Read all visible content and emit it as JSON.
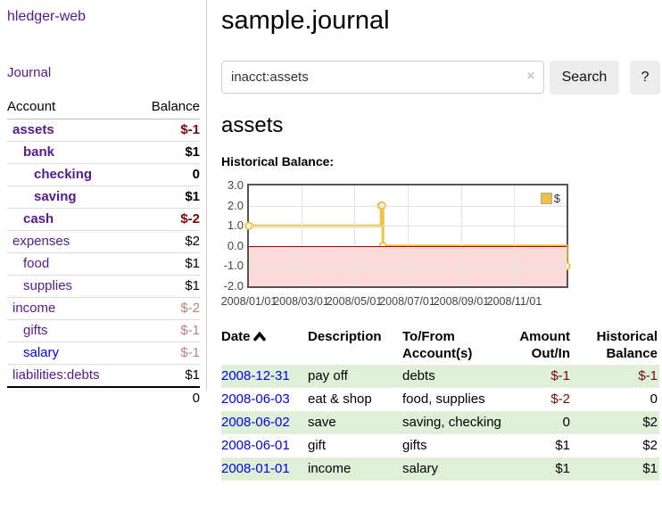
{
  "app": {
    "brand": "hledger-web",
    "nav": {
      "journal": "Journal"
    }
  },
  "sidebar": {
    "table_headers": {
      "account": "Account",
      "balance": "Balance"
    },
    "accounts": [
      {
        "name": "assets",
        "balance": "$-1"
      },
      {
        "name": "bank",
        "balance": "$1"
      },
      {
        "name": "checking",
        "balance": "0"
      },
      {
        "name": "saving",
        "balance": "$1"
      },
      {
        "name": "cash",
        "balance": "$-2"
      },
      {
        "name": "expenses",
        "balance": "$2"
      },
      {
        "name": "food",
        "balance": "$1"
      },
      {
        "name": "supplies",
        "balance": "$1"
      },
      {
        "name": "income",
        "balance": "$-2"
      },
      {
        "name": "gifts",
        "balance": "$-1"
      },
      {
        "name": "salary",
        "balance": "$-1"
      },
      {
        "name": "liabilities:debts",
        "balance": "$1"
      }
    ],
    "total": "0"
  },
  "main": {
    "title": "sample.journal",
    "search": {
      "value": "inacct:assets",
      "clear_icon": "×",
      "search_button": "Search",
      "help_button": "?"
    },
    "account_heading": "assets",
    "section_label": "Historical Balance:"
  },
  "chart_data": {
    "type": "line",
    "step": true,
    "title": "Historical Balance:",
    "legend": {
      "label": "$",
      "position": "top-right"
    },
    "series": [
      {
        "name": "$",
        "color": "#edc240",
        "points": [
          {
            "date": "2008-01-01",
            "day": 0,
            "value": 1
          },
          {
            "date": "2008-06-01",
            "day": 152,
            "value": 2
          },
          {
            "date": "2008-06-02",
            "day": 153,
            "value": 2
          },
          {
            "date": "2008-06-03",
            "day": 154,
            "value": 0
          },
          {
            "date": "2008-12-31",
            "day": 365,
            "value": -1
          }
        ]
      }
    ],
    "x_span_days": 365,
    "x_ticks": [
      {
        "label": "2008/01/01",
        "day": 0
      },
      {
        "label": "2008/03/01",
        "day": 60
      },
      {
        "label": "2008/05/01",
        "day": 121
      },
      {
        "label": "2008/07/01",
        "day": 182
      },
      {
        "label": "2008/09/01",
        "day": 244
      },
      {
        "label": "2008/11/01",
        "day": 305
      }
    ],
    "y_ticks": [
      {
        "label": "3.0",
        "value": 3
      },
      {
        "label": "2.0",
        "value": 2
      },
      {
        "label": "1.0",
        "value": 1
      },
      {
        "label": "0.0",
        "value": 0
      },
      {
        "label": "-1.0",
        "value": -1
      },
      {
        "label": "-2.0",
        "value": -2
      }
    ],
    "ylim": [
      -2,
      3
    ],
    "grid": true,
    "colors": {
      "negative_region": "#fbdada",
      "zero_line": "#a40000",
      "gridline": "#e3e3e3",
      "border": "#545454",
      "series": "#edc240"
    }
  },
  "register": {
    "headers": {
      "date": "Date",
      "description": "Description",
      "accounts": "To/From Account(s)",
      "amount": "Amount Out/In",
      "balance": "Historical Balance"
    },
    "rows": [
      {
        "date": "2008-12-31",
        "description": "pay off",
        "accounts": "debts",
        "amount": "$-1",
        "balance": "$-1"
      },
      {
        "date": "2008-06-03",
        "description": "eat & shop",
        "accounts": "food, supplies",
        "amount": "$-2",
        "balance": "0"
      },
      {
        "date": "2008-06-02",
        "description": "save",
        "accounts": "saving, checking",
        "amount": "0",
        "balance": "$2"
      },
      {
        "date": "2008-06-01",
        "description": "gift",
        "accounts": "gifts",
        "amount": "$1",
        "balance": "$2"
      },
      {
        "date": "2008-01-01",
        "description": "income",
        "accounts": "salary",
        "amount": "$1",
        "balance": "$1"
      }
    ]
  }
}
